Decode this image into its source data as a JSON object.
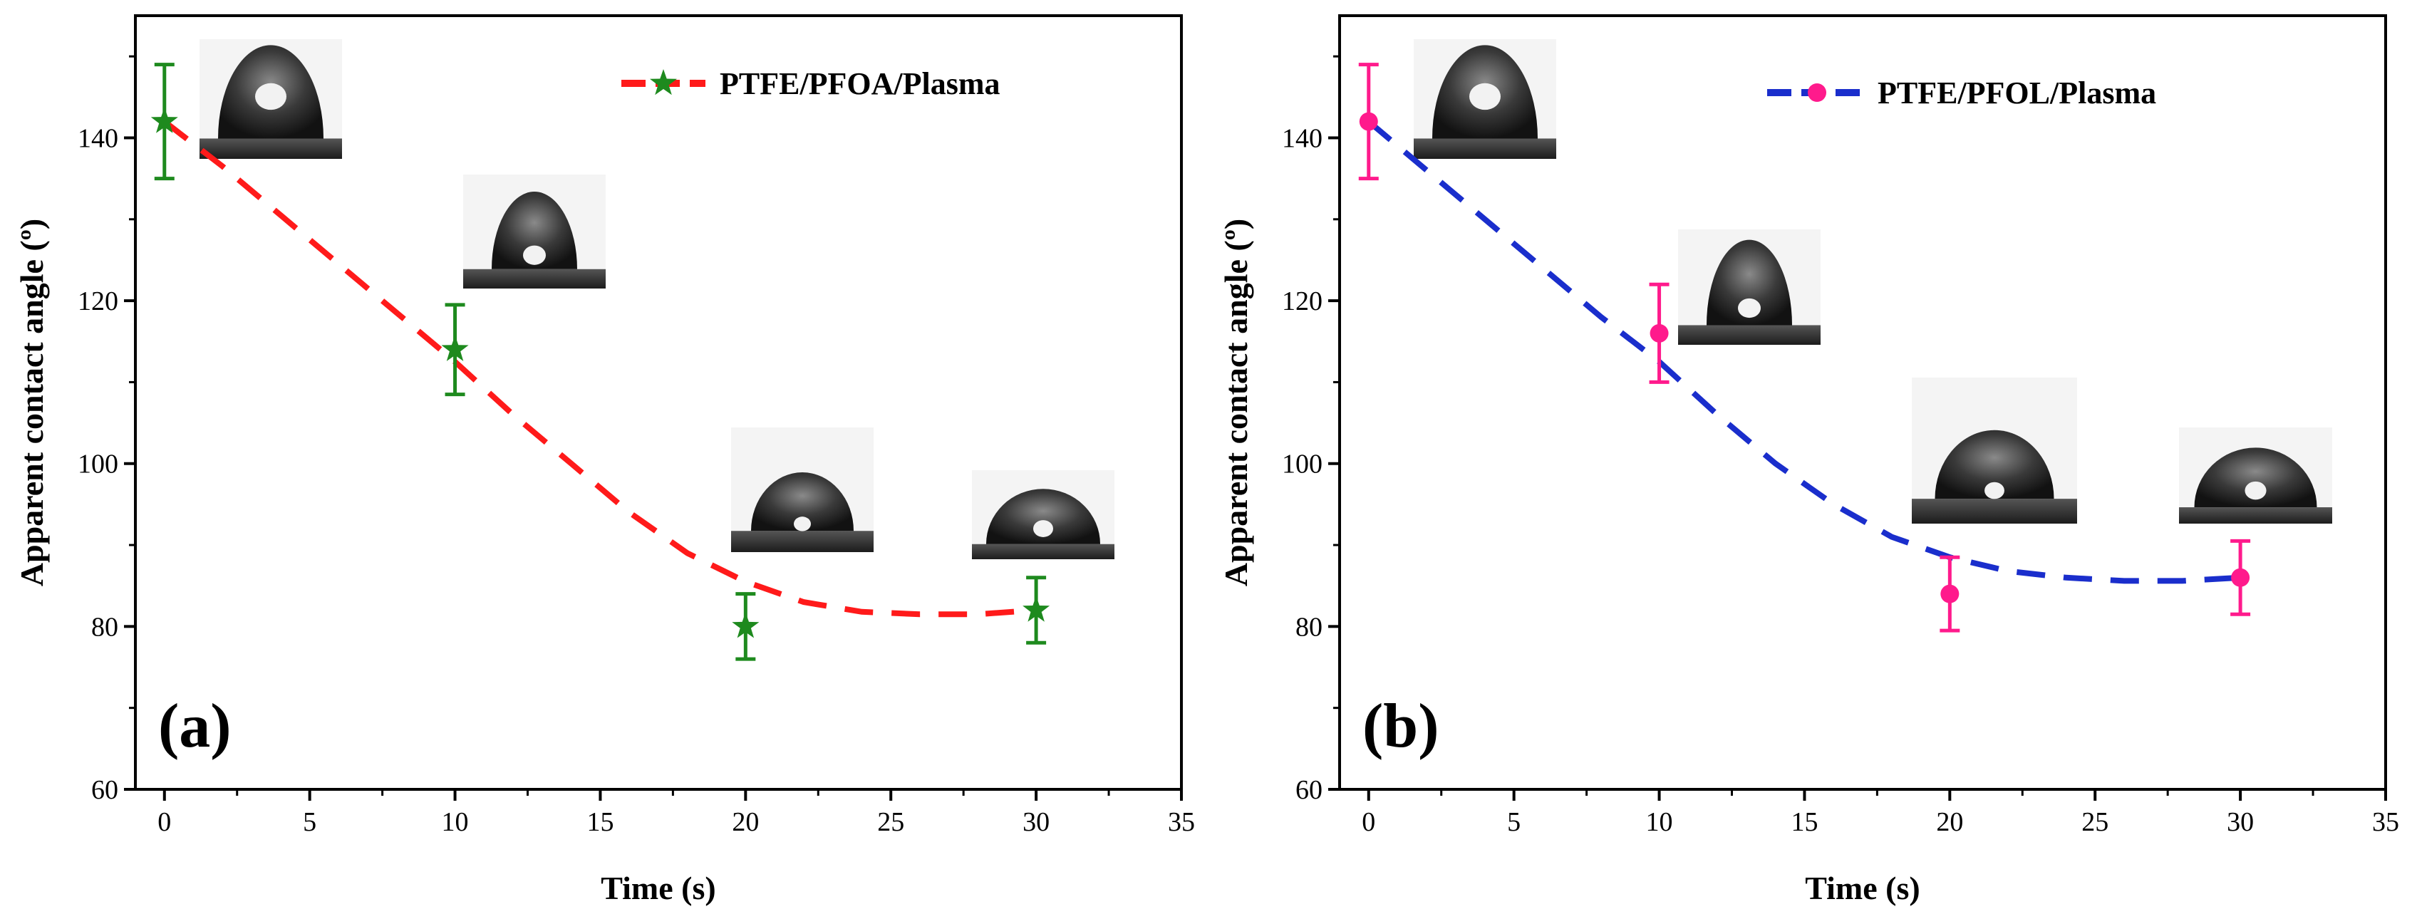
{
  "chart_data": [
    {
      "type": "line",
      "panel_label": "(a)",
      "title": "",
      "xlabel": "Time (s)",
      "ylabel": "Apparent contact angle (º)",
      "xlim": [
        -1,
        35
      ],
      "ylim": [
        60,
        155
      ],
      "xticks": [
        0,
        5,
        10,
        15,
        20,
        25,
        30,
        35
      ],
      "yticks": [
        60,
        80,
        100,
        120,
        140
      ],
      "legend_position": "top-right",
      "series": [
        {
          "name": "PTFE/PFOA/Plasma",
          "marker": "star",
          "marker_color": "#1e8a1e",
          "line_color": "#ff1a1a",
          "line_style": "dashed",
          "x": [
            0,
            10,
            20,
            30
          ],
          "y": [
            142,
            114,
            80,
            82
          ],
          "err": [
            7,
            5.5,
            4,
            4
          ],
          "fit_x": [
            0,
            2,
            4,
            6,
            8,
            10,
            12,
            14,
            16,
            18,
            20,
            22,
            24,
            26,
            28,
            30
          ],
          "fit_y": [
            142,
            136.5,
            130.5,
            124.5,
            118.5,
            112.5,
            106,
            100,
            94,
            89,
            85.5,
            83,
            81.8,
            81.5,
            81.5,
            82
          ]
        }
      ],
      "droplet_images": [
        {
          "label": "droplet-0s"
        },
        {
          "label": "droplet-10s"
        },
        {
          "label": "droplet-20s"
        },
        {
          "label": "droplet-30s"
        }
      ]
    },
    {
      "type": "line",
      "panel_label": "(b)",
      "title": "",
      "xlabel": "Time (s)",
      "ylabel": "Apparent contact angle (º)",
      "xlim": [
        -1,
        35
      ],
      "ylim": [
        60,
        155
      ],
      "xticks": [
        0,
        5,
        10,
        15,
        20,
        25,
        30,
        35
      ],
      "yticks": [
        60,
        80,
        100,
        120,
        140
      ],
      "legend_position": "top-right",
      "series": [
        {
          "name": "PTFE/PFOL/Plasma",
          "marker": "circle",
          "marker_color": "#ff1a8c",
          "line_color": "#1a2ecc",
          "line_style": "dashed",
          "x": [
            0,
            10,
            20,
            30
          ],
          "y": [
            142,
            116,
            84,
            86
          ],
          "err": [
            7,
            6,
            4.5,
            4.5
          ],
          "fit_x": [
            0,
            2,
            4,
            6,
            8,
            10,
            12,
            14,
            16,
            18,
            20,
            22,
            24,
            26,
            28,
            30
          ],
          "fit_y": [
            142,
            136,
            130,
            124,
            118,
            112.5,
            106,
            100,
            95,
            91,
            88.5,
            86.8,
            86,
            85.6,
            85.6,
            86
          ]
        }
      ],
      "droplet_images": [
        {
          "label": "droplet-0s"
        },
        {
          "label": "droplet-10s"
        },
        {
          "label": "droplet-20s"
        },
        {
          "label": "droplet-30s"
        }
      ]
    }
  ]
}
